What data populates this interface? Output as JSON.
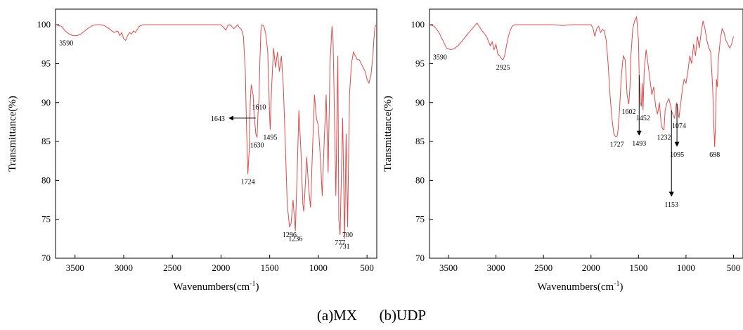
{
  "caption": "(a)MX      (b)UDP",
  "chart_data": [
    {
      "type": "line",
      "panel": "a",
      "xlabel": "Wavenumbers(cm",
      "xlabel_sup": "-1",
      "xlabel_end": ")",
      "ylabel": "Transmittance(%)",
      "xlim": [
        3700,
        400
      ],
      "ylim": [
        70,
        102
      ],
      "xticks": [
        3500,
        3000,
        2500,
        2000,
        1500,
        1000,
        500
      ],
      "yticks": [
        70,
        75,
        80,
        85,
        90,
        95,
        100
      ],
      "line_color": "#e04a4a",
      "x": [
        3700,
        3640,
        3600,
        3560,
        3520,
        3480,
        3440,
        3400,
        3360,
        3320,
        3280,
        3240,
        3200,
        3150,
        3100,
        3060,
        3040,
        3020,
        3000,
        2980,
        2960,
        2940,
        2920,
        2900,
        2880,
        2860,
        2840,
        2800,
        2700,
        2600,
        2500,
        2400,
        2300,
        2200,
        2100,
        2000,
        1970,
        1950,
        1930,
        1910,
        1890,
        1870,
        1850,
        1830,
        1810,
        1790,
        1770,
        1750,
        1740,
        1724,
        1710,
        1700,
        1690,
        1670,
        1660,
        1650,
        1643,
        1630,
        1620,
        1610,
        1600,
        1590,
        1580,
        1560,
        1540,
        1520,
        1500,
        1495,
        1480,
        1460,
        1440,
        1420,
        1400,
        1380,
        1360,
        1340,
        1320,
        1296,
        1280,
        1260,
        1236,
        1220,
        1200,
        1180,
        1160,
        1150,
        1140,
        1120,
        1100,
        1080,
        1060,
        1040,
        1020,
        1000,
        980,
        960,
        940,
        920,
        900,
        880,
        860,
        850,
        840,
        820,
        800,
        790,
        777,
        765,
        750,
        731,
        715,
        700,
        680,
        660,
        640,
        620,
        600,
        580,
        560,
        540,
        520,
        500,
        480,
        460,
        440,
        430,
        420,
        410
      ],
      "y": [
        100,
        99.8,
        99.2,
        98.8,
        98.6,
        98.6,
        98.8,
        99.2,
        99.6,
        99.9,
        100,
        100,
        99.9,
        99.5,
        99.0,
        99.2,
        98.6,
        99.0,
        98.2,
        98.0,
        98.6,
        99.0,
        98.8,
        99.2,
        99.0,
        99.4,
        99.8,
        100,
        100,
        100,
        100,
        100,
        100,
        100,
        100,
        100,
        99.6,
        99.3,
        99.9,
        100,
        99.8,
        99.5,
        99.7,
        100,
        99.6,
        99.4,
        98.5,
        94.0,
        88.0,
        80.8,
        84.0,
        90.0,
        92.3,
        91.0,
        88.5,
        87.0,
        86.0,
        85.5,
        88.5,
        90.4,
        95.5,
        99.3,
        100,
        99.8,
        98.8,
        96.5,
        88.0,
        86.5,
        92.0,
        97.0,
        94.5,
        96.5,
        94.0,
        96.0,
        92.0,
        85.0,
        77.0,
        74.0,
        74.5,
        77.5,
        73.5,
        80.0,
        89.0,
        84.0,
        77.0,
        76.0,
        78.0,
        83.0,
        79.0,
        76.5,
        84.0,
        91.0,
        88.0,
        87.0,
        83.0,
        78.0,
        85.0,
        91.0,
        81.0,
        95.0,
        99.8,
        98.5,
        92.0,
        78.0,
        96.0,
        75.0,
        73.0,
        80.0,
        88.0,
        72.5,
        86.0,
        74.0,
        91.0,
        95.0,
        96.5,
        96.0,
        95.5,
        95.5,
        95.0,
        94.5,
        94.0,
        93.0,
        92.5,
        93.5,
        96.0,
        98.0,
        99.5,
        100
      ],
      "annotations": [
        {
          "label": "3590",
          "x": 3590,
          "y": 98.6
        },
        {
          "label": "1724",
          "x": 1724,
          "y": 80.8
        },
        {
          "label": "1630",
          "x": 1630,
          "y": 85.5
        },
        {
          "label": "1610",
          "x": 1610,
          "y": 90.4
        },
        {
          "label": "1643",
          "x": 1643,
          "y": 88.0,
          "arrow": "left"
        },
        {
          "label": "1495",
          "x": 1495,
          "y": 86.5
        },
        {
          "label": "1296",
          "x": 1296,
          "y": 74.0
        },
        {
          "label": "1236",
          "x": 1236,
          "y": 73.5
        },
        {
          "label": "777",
          "x": 777,
          "y": 73.0
        },
        {
          "label": "731",
          "x": 731,
          "y": 72.5
        },
        {
          "label": "700",
          "x": 700,
          "y": 74.0
        }
      ]
    },
    {
      "type": "line",
      "panel": "b",
      "xlabel": "Wavenumbers(cm",
      "xlabel_sup": "-1",
      "xlabel_end": ")",
      "ylabel": "Transmittance(%)",
      "xlim": [
        3700,
        400
      ],
      "ylim": [
        70,
        102
      ],
      "xticks": [
        3500,
        3000,
        2500,
        2000,
        1500,
        1000,
        500
      ],
      "yticks": [
        70,
        75,
        80,
        85,
        90,
        95,
        100
      ],
      "line_color": "#e04a4a",
      "x": [
        3700,
        3650,
        3600,
        3560,
        3520,
        3480,
        3440,
        3400,
        3350,
        3300,
        3250,
        3200,
        3150,
        3100,
        3060,
        3040,
        3020,
        3000,
        2980,
        2960,
        2940,
        2925,
        2910,
        2890,
        2870,
        2850,
        2830,
        2800,
        2700,
        2600,
        2500,
        2400,
        2300,
        2200,
        2100,
        2000,
        1980,
        1960,
        1940,
        1920,
        1900,
        1880,
        1860,
        1840,
        1820,
        1800,
        1780,
        1760,
        1740,
        1727,
        1715,
        1700,
        1680,
        1660,
        1640,
        1620,
        1602,
        1590,
        1580,
        1560,
        1540,
        1520,
        1500,
        1493,
        1480,
        1470,
        1460,
        1452,
        1440,
        1420,
        1400,
        1380,
        1360,
        1340,
        1320,
        1300,
        1280,
        1260,
        1240,
        1232,
        1220,
        1200,
        1180,
        1160,
        1153,
        1140,
        1120,
        1110,
        1100,
        1095,
        1090,
        1080,
        1074,
        1060,
        1040,
        1020,
        1000,
        980,
        960,
        940,
        920,
        900,
        880,
        860,
        840,
        820,
        800,
        780,
        760,
        740,
        720,
        710,
        698,
        690,
        680,
        670,
        660,
        640,
        620,
        600,
        580,
        560,
        540,
        520,
        500
      ],
      "y": [
        100,
        99.8,
        99.0,
        98.0,
        97.0,
        96.8,
        96.9,
        97.3,
        98.0,
        98.8,
        99.5,
        100.2,
        99.3,
        98.5,
        97.3,
        97.8,
        96.8,
        97.5,
        96.2,
        96.0,
        95.6,
        95.5,
        96.0,
        97.3,
        98.5,
        99.3,
        99.8,
        100,
        100,
        100,
        100,
        100,
        99.9,
        100,
        100,
        100,
        99.6,
        98.5,
        99.5,
        99.8,
        99.0,
        99.4,
        99.2,
        98.0,
        95.0,
        91.0,
        88.0,
        86.0,
        85.6,
        85.6,
        86.5,
        89.0,
        93.5,
        96.0,
        95.5,
        91.0,
        89.8,
        92.0,
        96.0,
        99.5,
        100.5,
        101.0,
        98.0,
        93.5,
        90.0,
        89.5,
        92.5,
        89.0,
        94.0,
        96.8,
        95.0,
        93.0,
        91.0,
        92.0,
        89.5,
        88.5,
        90.0,
        87.0,
        86.5,
        86.5,
        89.0,
        90.0,
        90.5,
        89.5,
        89.0,
        88.5,
        88.0,
        89.0,
        90.0,
        89.8,
        89.5,
        88.5,
        88.0,
        89.5,
        91.5,
        93.0,
        92.5,
        94.0,
        96.0,
        95.0,
        97.5,
        96.0,
        98.5,
        97.0,
        99.0,
        100.5,
        99.5,
        98.0,
        97.0,
        96.5,
        92.0,
        88.0,
        84.3,
        87.0,
        93.0,
        92.0,
        95.5,
        98.0,
        99.5,
        99.0,
        98.0,
        97.5,
        97.0,
        97.5,
        98.5
      ],
      "annotations": [
        {
          "label": "3590",
          "x": 3590,
          "y": 96.8
        },
        {
          "label": "2925",
          "x": 2925,
          "y": 95.5
        },
        {
          "label": "1727",
          "x": 1727,
          "y": 85.6
        },
        {
          "label": "1602",
          "x": 1602,
          "y": 89.8
        },
        {
          "label": "1452",
          "x": 1452,
          "y": 89.0
        },
        {
          "label": "1232",
          "x": 1232,
          "y": 86.5
        },
        {
          "label": "1074",
          "x": 1074,
          "y": 88.0
        },
        {
          "label": "698",
          "x": 698,
          "y": 84.3
        },
        {
          "label": "1493",
          "x": 1493,
          "y": 93.5,
          "arrow": "down"
        },
        {
          "label": "1153",
          "x": 1153,
          "y": 89.0,
          "arrow": "down"
        },
        {
          "label": "1095",
          "x": 1095,
          "y": 89.8,
          "arrow": "down"
        }
      ]
    }
  ]
}
